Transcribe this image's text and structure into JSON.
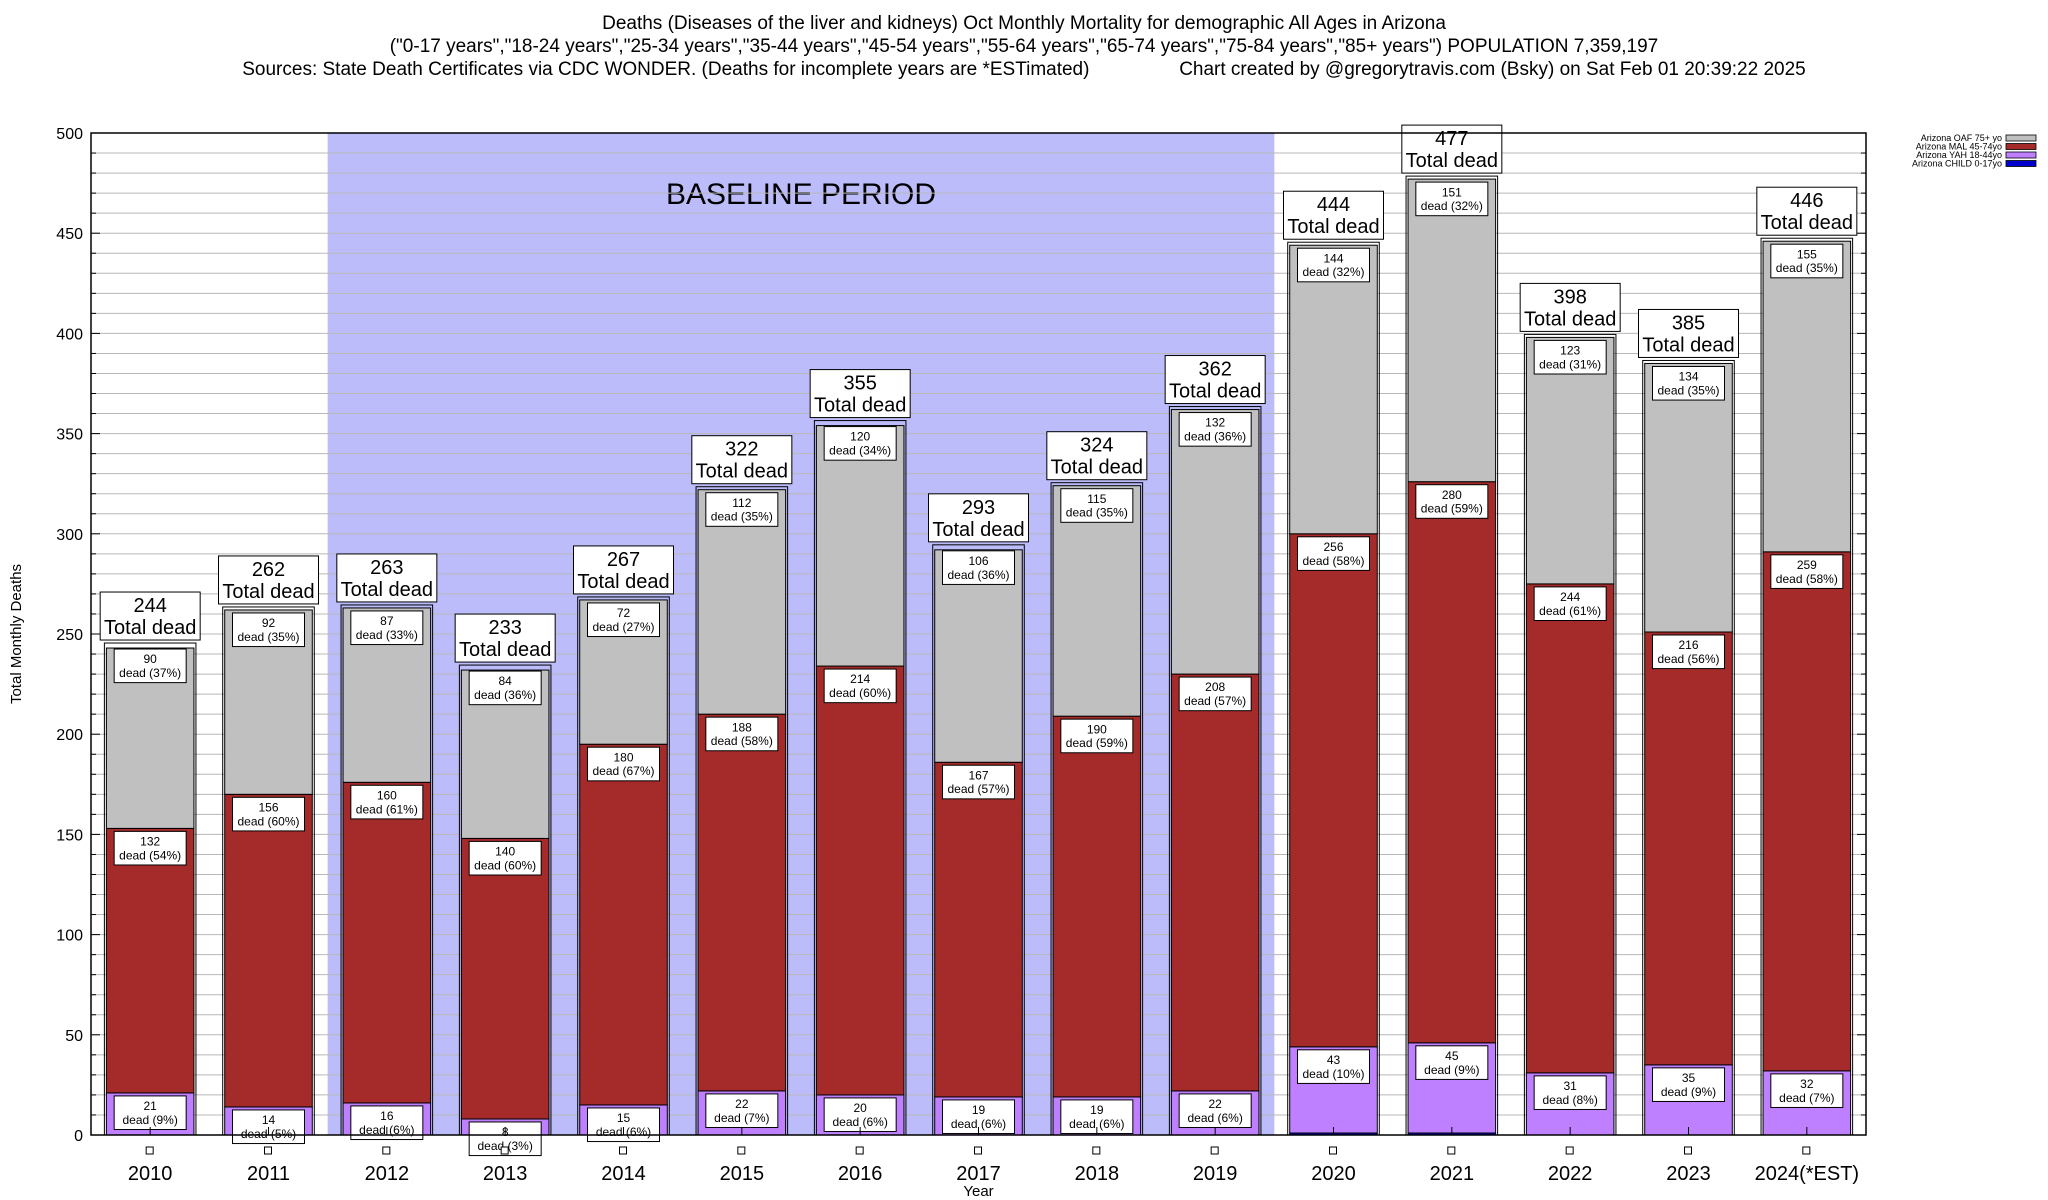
{
  "header": {
    "title_line1": "Deaths (Diseases of the liver and kidneys) Oct Monthly Mortality for demographic All Ages in Arizona",
    "title_line2": "(\"0-17 years\",\"18-24 years\",\"25-34 years\",\"35-44 years\",\"45-54 years\",\"55-64 years\",\"65-74 years\",\"75-84 years\",\"85+ years\") POPULATION 7,359,197",
    "title_line3": "Sources: State Death Certificates via CDC WONDER. (Deaths for incomplete years are *ESTimated)                 Chart created by @gregorytravis.com (Bsky) on Sat Feb 01 20:39:22 2025"
  },
  "colors": {
    "oaf": "#c0c0c0",
    "mal": "#a52a2a",
    "yah": "#bf80ff",
    "child": "#0000cc",
    "baseline": "#bcbcfa",
    "grid": "#b8b8b8"
  },
  "chart_data": {
    "type": "bar",
    "stacked": true,
    "ylabel": "Total Monthly Deaths",
    "xlabel": "Year",
    "ylim": [
      0,
      500
    ],
    "yticks": [
      0,
      50,
      100,
      150,
      200,
      250,
      300,
      350,
      400,
      450,
      500
    ],
    "categories": [
      "2010",
      "2011",
      "2012",
      "2013",
      "2014",
      "2015",
      "2016",
      "2017",
      "2018",
      "2019",
      "2020",
      "2021",
      "2022",
      "2023",
      "2024(*EST)"
    ],
    "baseline_label": "BASELINE PERIOD",
    "baseline_range": [
      "2012",
      "2019"
    ],
    "total_label": "Total dead",
    "dead_word": "dead",
    "totals": [
      244,
      262,
      263,
      233,
      267,
      322,
      355,
      293,
      324,
      362,
      444,
      477,
      398,
      385,
      446
    ],
    "series": [
      {
        "name": "Arizona CHILD 0-17yo",
        "color_key": "child",
        "values": [
          0,
          0,
          0,
          0,
          0,
          0,
          0,
          0,
          0,
          0,
          1,
          1,
          0,
          0,
          0
        ],
        "pct": []
      },
      {
        "name": "Arizona YAH 18-44yo",
        "color_key": "yah",
        "values": [
          21,
          14,
          16,
          8,
          15,
          22,
          20,
          19,
          19,
          22,
          43,
          45,
          31,
          35,
          32
        ],
        "pct": [
          "9%",
          "5%",
          "6%",
          "3%",
          "6%",
          "7%",
          "6%",
          "6%",
          "6%",
          "6%",
          "10%",
          "9%",
          "8%",
          "9%",
          "7%"
        ]
      },
      {
        "name": "Arizona MAL 45-74yo",
        "color_key": "mal",
        "values": [
          132,
          156,
          160,
          140,
          180,
          188,
          214,
          167,
          190,
          208,
          256,
          280,
          244,
          216,
          259
        ],
        "pct": [
          "54%",
          "60%",
          "61%",
          "60%",
          "67%",
          "58%",
          "60%",
          "57%",
          "59%",
          "57%",
          "58%",
          "59%",
          "61%",
          "56%",
          "58%"
        ]
      },
      {
        "name": "Arizona OAF 75+ yo",
        "color_key": "oaf",
        "values": [
          90,
          92,
          87,
          84,
          72,
          112,
          120,
          106,
          115,
          132,
          144,
          151,
          123,
          134,
          155
        ],
        "pct": [
          "37%",
          "35%",
          "33%",
          "36%",
          "27%",
          "35%",
          "34%",
          "36%",
          "35%",
          "36%",
          "32%",
          "32%",
          "31%",
          "35%",
          "35%"
        ]
      }
    ],
    "legend_position": "top-right",
    "grid": true
  }
}
